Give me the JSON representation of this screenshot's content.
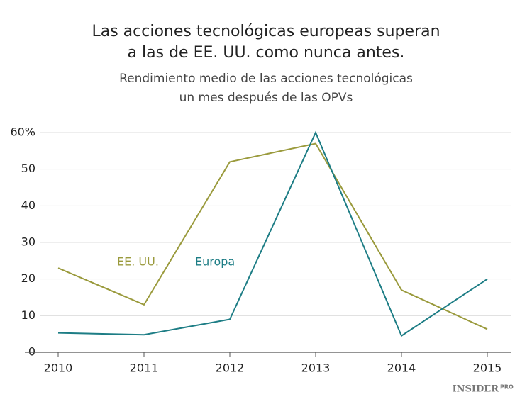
{
  "chart_data": {
    "type": "line",
    "title": [
      "Las acciones tecnológicas europeas superan",
      "a las de EE. UU. como nunca antes."
    ],
    "subtitle": [
      "Rendimiento medio de las acciones tecnológicas",
      "un mes después de las OPVs"
    ],
    "x": [
      2010,
      2011,
      2012,
      2013,
      2014,
      2015
    ],
    "xlim": [
      2010,
      2015
    ],
    "xticks": [
      2010,
      2011,
      2012,
      2013,
      2014,
      2015
    ],
    "ylim": [
      0,
      60
    ],
    "yticks": [
      0,
      10,
      20,
      30,
      40,
      50,
      {
        "value": 60,
        "label": "60%"
      }
    ],
    "grid": true,
    "series": [
      {
        "name": "EE. UU.",
        "color": "#9a9a3c",
        "values": [
          23,
          13,
          52,
          57,
          17,
          6.3
        ]
      },
      {
        "name": "Europa",
        "color": "#1d7d85",
        "values": [
          5.3,
          4.8,
          9,
          60,
          4.5,
          20
        ]
      }
    ]
  },
  "brand": [
    "INSIDER",
    "PRO"
  ]
}
